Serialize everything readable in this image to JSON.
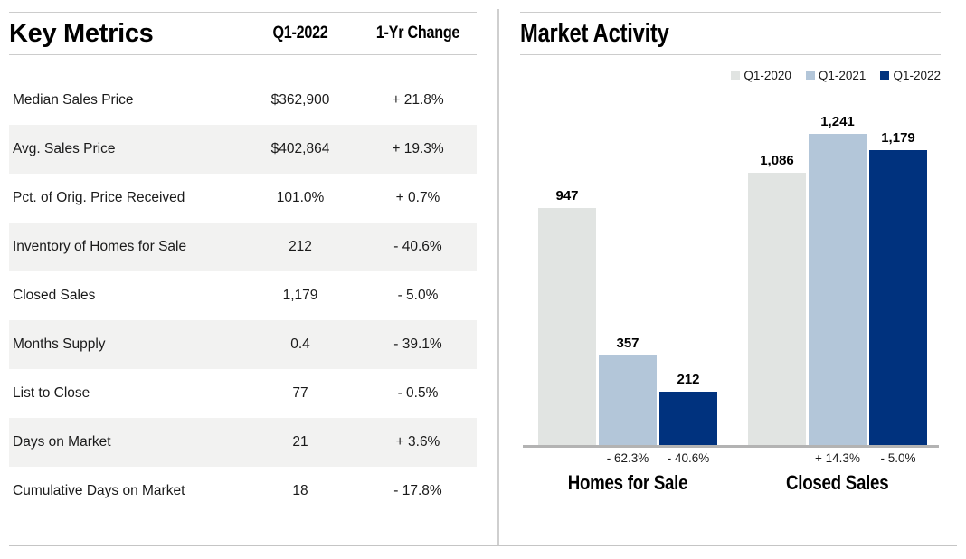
{
  "left_panel": {
    "title": "Key Metrics",
    "columns": {
      "value": "Q1-2022",
      "change": "1-Yr Change"
    },
    "rows": [
      {
        "label": "Median Sales Price",
        "value": "$362,900",
        "change": "+ 21.8%"
      },
      {
        "label": "Avg. Sales Price",
        "value": "$402,864",
        "change": "+ 19.3%"
      },
      {
        "label": "Pct. of Orig. Price Received",
        "value": "101.0%",
        "change": "+ 0.7%"
      },
      {
        "label": "Inventory of Homes for Sale",
        "value": "212",
        "change": "- 40.6%"
      },
      {
        "label": "Closed Sales",
        "value": "1,179",
        "change": "- 5.0%"
      },
      {
        "label": "Months Supply",
        "value": "0.4",
        "change": "- 39.1%"
      },
      {
        "label": "List to Close",
        "value": "77",
        "change": "- 0.5%"
      },
      {
        "label": "Days on Market",
        "value": "21",
        "change": "+ 3.6%"
      },
      {
        "label": "Cumulative Days on Market",
        "value": "18",
        "change": "- 17.8%"
      }
    ],
    "row_shade_color": "#f2f2f1"
  },
  "right_panel": {
    "title": "Market Activity",
    "legend": [
      {
        "label": "Q1-2020",
        "color": "#e1e4e2"
      },
      {
        "label": "Q1-2021",
        "color": "#b3c6d9"
      },
      {
        "label": "Q1-2022",
        "color": "#00327e"
      }
    ]
  },
  "chart_data": {
    "type": "bar",
    "title": "Market Activity",
    "categories": [
      "Homes for Sale",
      "Closed Sales"
    ],
    "series_names": [
      "Q1-2020",
      "Q1-2021",
      "Q1-2022"
    ],
    "series_colors": [
      "#e1e4e2",
      "#b3c6d9",
      "#00327e"
    ],
    "groups": [
      {
        "category": "Homes for Sale",
        "bars": [
          {
            "series": "Q1-2020",
            "value": 947,
            "label": "947",
            "change": ""
          },
          {
            "series": "Q1-2021",
            "value": 357,
            "label": "357",
            "change": "- 62.3%"
          },
          {
            "series": "Q1-2022",
            "value": 212,
            "label": "212",
            "change": "- 40.6%"
          }
        ]
      },
      {
        "category": "Closed Sales",
        "bars": [
          {
            "series": "Q1-2020",
            "value": 1086,
            "label": "1,086",
            "change": ""
          },
          {
            "series": "Q1-2021",
            "value": 1241,
            "label": "1,241",
            "change": "+ 14.3%"
          },
          {
            "series": "Q1-2022",
            "value": 1179,
            "label": "1,179",
            "change": "- 5.0%"
          }
        ]
      }
    ],
    "ylim": [
      0,
      1300
    ],
    "grid": false,
    "y_axis_visible": false,
    "legend_position": "top-right",
    "axis_color": "#b3b3b3"
  }
}
